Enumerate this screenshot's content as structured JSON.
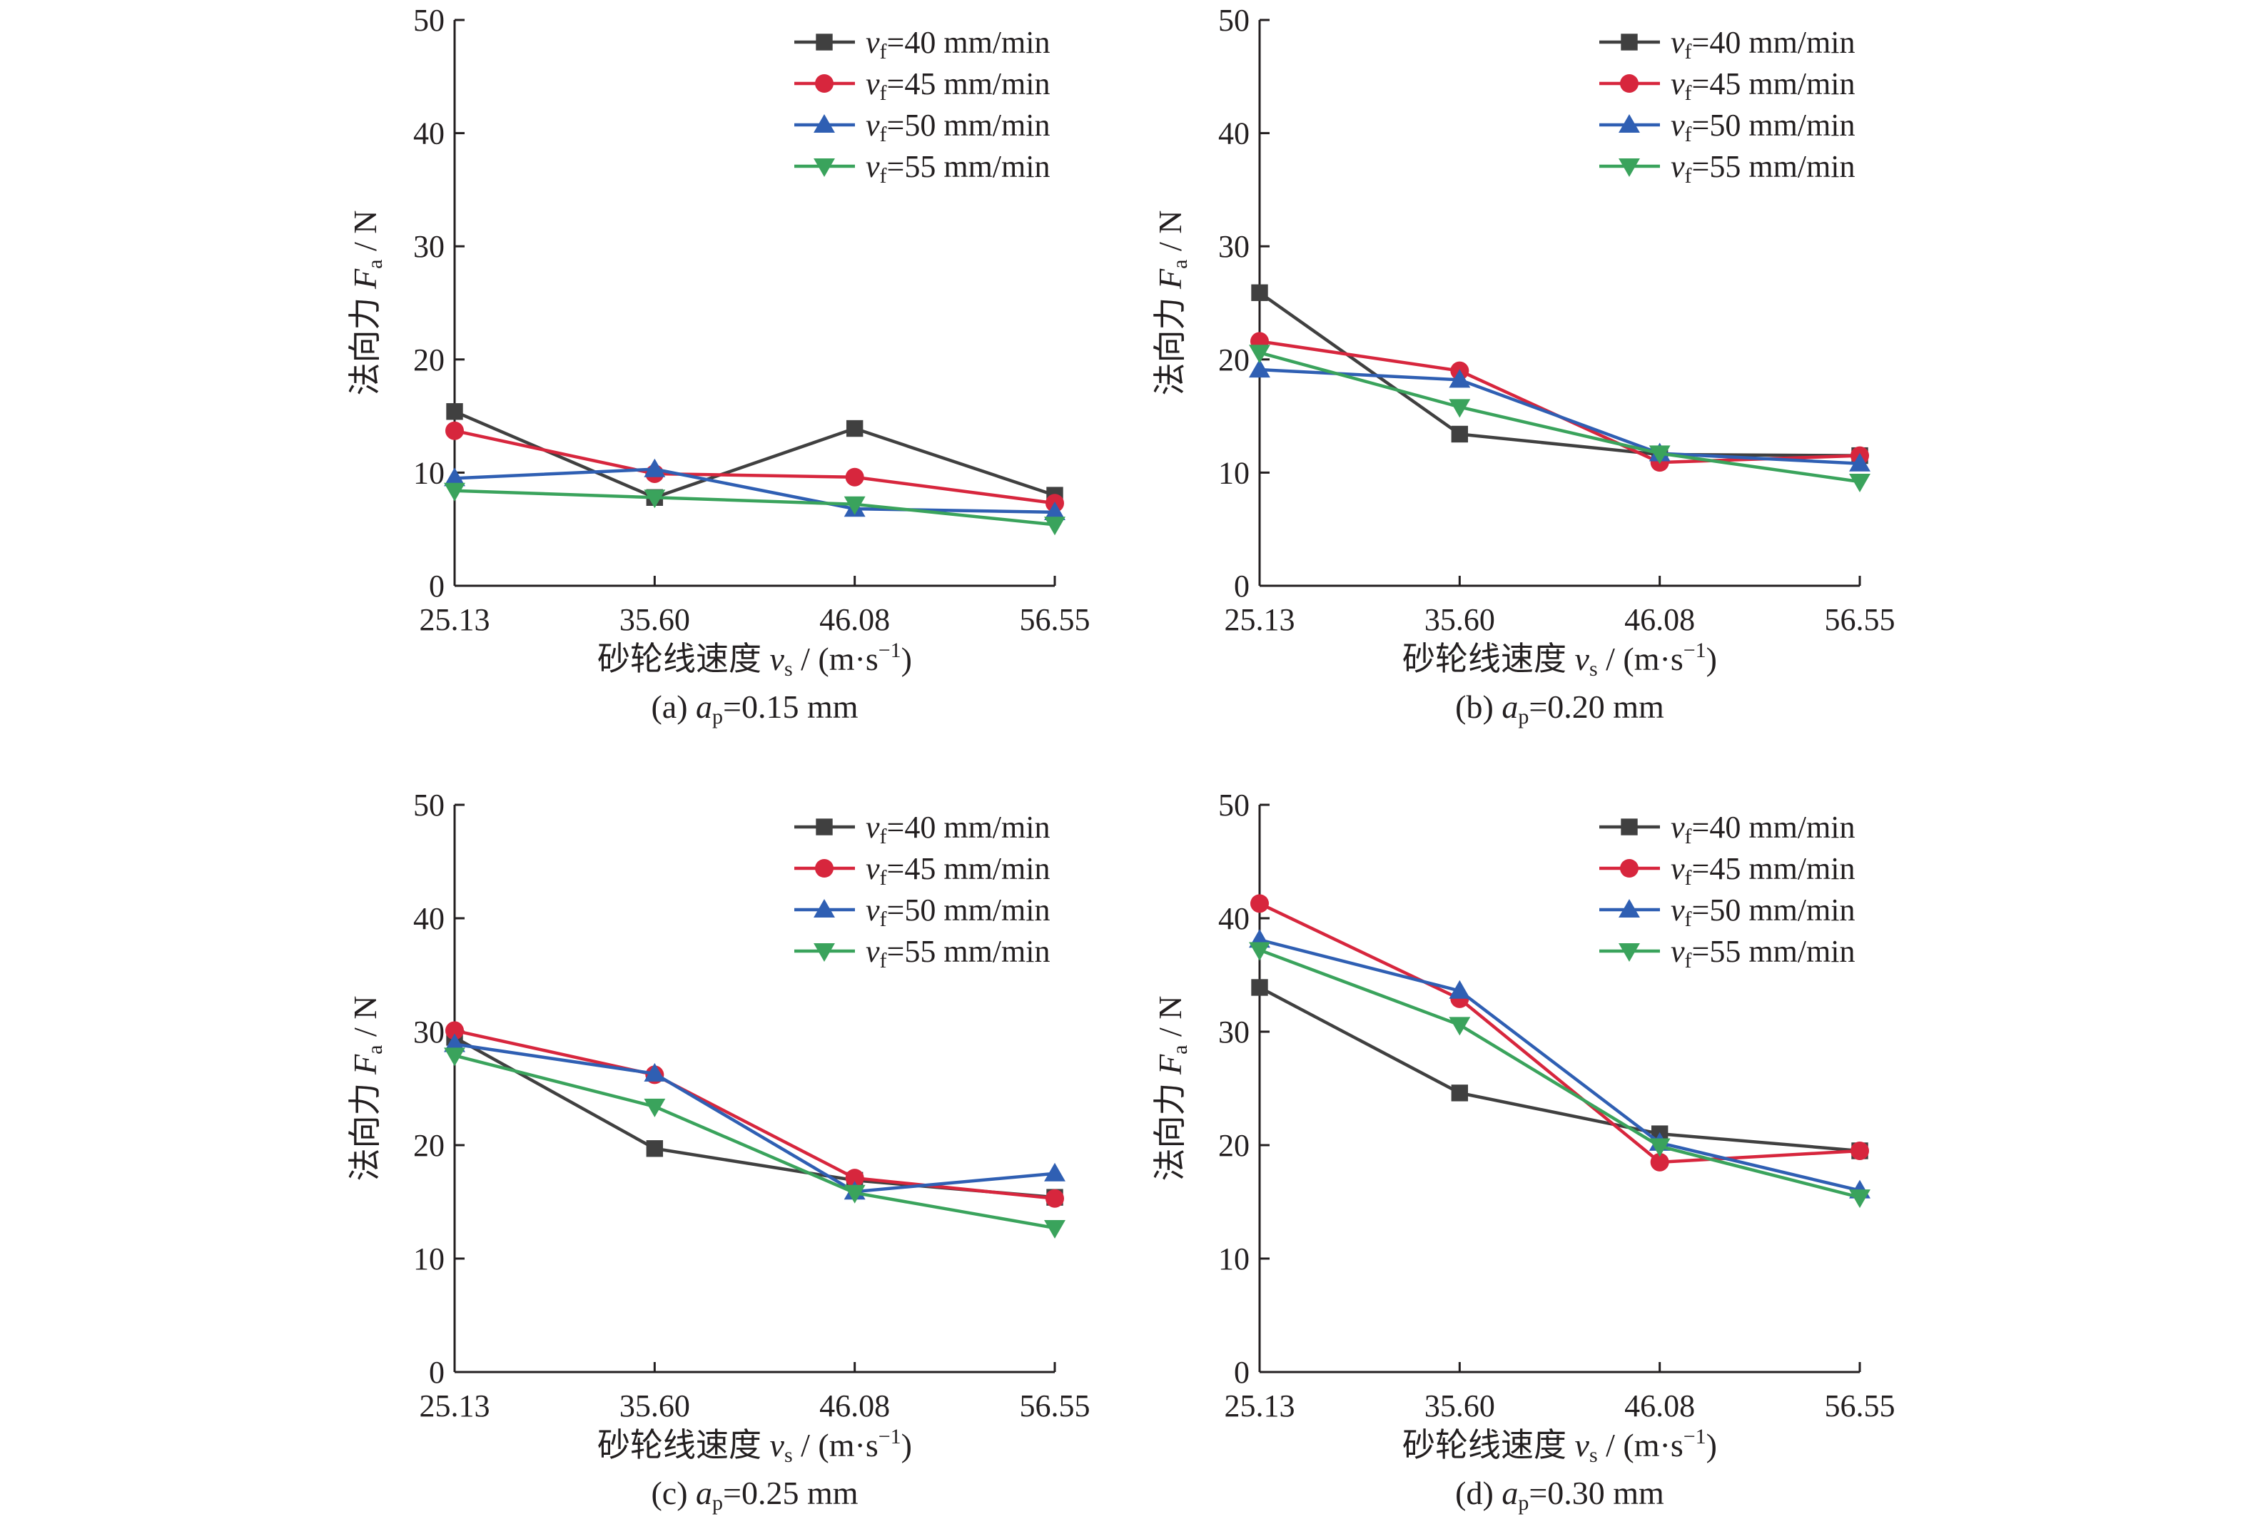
{
  "series_styles": [
    {
      "key": "vf40",
      "color": "#404040",
      "marker": "square"
    },
    {
      "key": "vf45",
      "color": "#d7263d",
      "marker": "circle"
    },
    {
      "key": "vf50",
      "color": "#2f5fb3",
      "marker": "triangle-up"
    },
    {
      "key": "vf55",
      "color": "#3aa35c",
      "marker": "triangle-down"
    }
  ],
  "chart_data": [
    {
      "type": "line",
      "caption": {
        "prefix": "(a) ",
        "var": "a",
        "sub": "p",
        "rest": "=0.15 mm"
      },
      "xlabel": {
        "prefix": "砂轮线速度 ",
        "var": "v",
        "sub": "s",
        "suffix": " / (m·s",
        "sup": "−1",
        "end": ")"
      },
      "ylabel": {
        "prefix": "法向力 ",
        "var": "F",
        "sub": "a",
        "suffix": " / N"
      },
      "categories": [
        "25.13",
        "35.60",
        "46.08",
        "56.55"
      ],
      "ylim": [
        0,
        50
      ],
      "yticks": [
        "0",
        "10",
        "20",
        "30",
        "40",
        "50"
      ],
      "legend_position": "top-right",
      "series": [
        {
          "name": {
            "var": "v",
            "sub": "f",
            "rest": "=40 mm/min"
          },
          "values": [
            15.4,
            7.8,
            13.9,
            8.0
          ]
        },
        {
          "name": {
            "var": "v",
            "sub": "f",
            "rest": "=45 mm/min"
          },
          "values": [
            13.7,
            9.9,
            9.6,
            7.3
          ]
        },
        {
          "name": {
            "var": "v",
            "sub": "f",
            "rest": "=50 mm/min"
          },
          "values": [
            9.5,
            10.3,
            6.8,
            6.5
          ]
        },
        {
          "name": {
            "var": "v",
            "sub": "f",
            "rest": "=55 mm/min"
          },
          "values": [
            8.4,
            7.8,
            7.2,
            5.4
          ]
        }
      ]
    },
    {
      "type": "line",
      "caption": {
        "prefix": "(b) ",
        "var": "a",
        "sub": "p",
        "rest": "=0.20 mm"
      },
      "xlabel": {
        "prefix": "砂轮线速度 ",
        "var": "v",
        "sub": "s",
        "suffix": " / (m·s",
        "sup": "−1",
        "end": ")"
      },
      "ylabel": {
        "prefix": "法向力 ",
        "var": "F",
        "sub": "a",
        "suffix": " / N"
      },
      "categories": [
        "25.13",
        "35.60",
        "46.08",
        "56.55"
      ],
      "ylim": [
        0,
        50
      ],
      "yticks": [
        "0",
        "10",
        "20",
        "30",
        "40",
        "50"
      ],
      "legend_position": "top-right",
      "series": [
        {
          "name": {
            "var": "v",
            "sub": "f",
            "rest": "=40 mm/min"
          },
          "values": [
            25.9,
            13.4,
            11.6,
            11.5
          ]
        },
        {
          "name": {
            "var": "v",
            "sub": "f",
            "rest": "=45 mm/min"
          },
          "values": [
            21.6,
            19.0,
            10.9,
            11.5
          ]
        },
        {
          "name": {
            "var": "v",
            "sub": "f",
            "rest": "=50 mm/min"
          },
          "values": [
            19.1,
            18.2,
            11.7,
            10.8
          ]
        },
        {
          "name": {
            "var": "v",
            "sub": "f",
            "rest": "=55 mm/min"
          },
          "values": [
            20.6,
            15.8,
            11.7,
            9.2
          ]
        }
      ]
    },
    {
      "type": "line",
      "caption": {
        "prefix": "(c) ",
        "var": "a",
        "sub": "p",
        "rest": "=0.25 mm"
      },
      "xlabel": {
        "prefix": "砂轮线速度 ",
        "var": "v",
        "sub": "s",
        "suffix": " / (m·s",
        "sup": "−1",
        "end": ")"
      },
      "ylabel": {
        "prefix": "法向力 ",
        "var": "F",
        "sub": "a",
        "suffix": " / N"
      },
      "categories": [
        "25.13",
        "35.60",
        "46.08",
        "56.55"
      ],
      "ylim": [
        0,
        50
      ],
      "yticks": [
        "0",
        "10",
        "20",
        "30",
        "40",
        "50"
      ],
      "legend_position": "top-right",
      "series": [
        {
          "name": {
            "var": "v",
            "sub": "f",
            "rest": "=40 mm/min"
          },
          "values": [
            29.5,
            19.7,
            16.9,
            15.4
          ]
        },
        {
          "name": {
            "var": "v",
            "sub": "f",
            "rest": "=45 mm/min"
          },
          "values": [
            30.1,
            26.2,
            17.1,
            15.3
          ]
        },
        {
          "name": {
            "var": "v",
            "sub": "f",
            "rest": "=50 mm/min"
          },
          "values": [
            28.9,
            26.3,
            15.9,
            17.5
          ]
        },
        {
          "name": {
            "var": "v",
            "sub": "f",
            "rest": "=55 mm/min"
          },
          "values": [
            27.9,
            23.4,
            15.8,
            12.7
          ]
        }
      ]
    },
    {
      "type": "line",
      "caption": {
        "prefix": "(d) ",
        "var": "a",
        "sub": "p",
        "rest": "=0.30 mm"
      },
      "xlabel": {
        "prefix": "砂轮线速度 ",
        "var": "v",
        "sub": "s",
        "suffix": " / (m·s",
        "sup": "−1",
        "end": ")"
      },
      "ylabel": {
        "prefix": "法向力 ",
        "var": "F",
        "sub": "a",
        "suffix": " / N"
      },
      "categories": [
        "25.13",
        "35.60",
        "46.08",
        "56.55"
      ],
      "ylim": [
        0,
        50
      ],
      "yticks": [
        "0",
        "10",
        "20",
        "30",
        "40",
        "50"
      ],
      "legend_position": "top-right",
      "series": [
        {
          "name": {
            "var": "v",
            "sub": "f",
            "rest": "=40 mm/min"
          },
          "values": [
            33.9,
            24.6,
            21.0,
            19.5
          ]
        },
        {
          "name": {
            "var": "v",
            "sub": "f",
            "rest": "=45 mm/min"
          },
          "values": [
            41.3,
            32.9,
            18.5,
            19.5
          ]
        },
        {
          "name": {
            "var": "v",
            "sub": "f",
            "rest": "=50 mm/min"
          },
          "values": [
            38.1,
            33.6,
            20.2,
            16.0
          ]
        },
        {
          "name": {
            "var": "v",
            "sub": "f",
            "rest": "=55 mm/min"
          },
          "values": [
            37.2,
            30.6,
            19.9,
            15.4
          ]
        }
      ]
    }
  ]
}
